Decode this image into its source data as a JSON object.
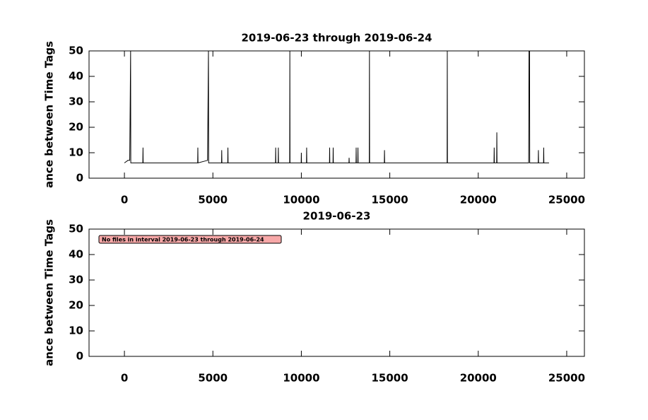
{
  "chart_data": [
    {
      "type": "line",
      "title": "2019-06-23 through 2019-06-24",
      "y_label": "ance between Time Tags",
      "color": "#000000",
      "x": [
        0,
        100,
        200,
        300,
        350,
        360,
        1040,
        1050,
        1060,
        4140,
        4150,
        4160,
        4700,
        4750,
        4760,
        5490,
        5500,
        5510,
        5840,
        5850,
        5860,
        8540,
        8550,
        8560,
        8690,
        8700,
        8710,
        9340,
        9350,
        9360,
        9990,
        10000,
        10010,
        10290,
        10300,
        10310,
        11590,
        11600,
        11610,
        11790,
        11800,
        11810,
        12690,
        12700,
        12710,
        13090,
        13100,
        13110,
        13190,
        13200,
        13210,
        13840,
        13850,
        13860,
        14690,
        14700,
        14710,
        18240,
        18250,
        18260,
        20890,
        20900,
        20910,
        21040,
        21050,
        21060,
        22850,
        22870,
        22900,
        22910,
        23390,
        23400,
        23410,
        23690,
        23700,
        23710,
        24000
      ],
      "values": [
        6,
        6.5,
        7,
        7,
        50,
        6,
        6,
        12,
        6,
        6,
        12,
        6,
        7,
        50,
        6,
        6,
        11,
        6,
        6,
        12,
        6,
        6,
        12,
        6,
        6,
        12,
        6,
        6,
        50,
        6,
        6,
        10,
        6,
        6,
        12,
        6,
        6,
        12,
        6,
        6,
        12,
        6,
        6,
        8,
        6,
        6,
        12,
        6,
        6,
        12,
        6,
        6,
        50,
        6,
        6,
        11,
        6,
        6,
        50,
        6,
        6,
        12,
        6,
        6,
        18,
        6,
        6,
        50,
        50,
        6,
        6,
        11,
        6,
        6,
        12,
        6,
        6
      ],
      "xlim": [
        -2000,
        26000
      ],
      "xticks": [
        0,
        5000,
        10000,
        15000,
        20000,
        25000
      ],
      "ylim": [
        0,
        50
      ],
      "yticks": [
        0,
        10,
        20,
        30,
        40,
        50
      ]
    },
    {
      "type": "line",
      "title": "2019-06-23",
      "y_label": "ance between Time Tags",
      "annotation": "No files in interval 2019-06-23 through 2019-06-24",
      "xlim": [
        -2000,
        26000
      ],
      "xticks": [
        0,
        5000,
        10000,
        15000,
        20000,
        25000
      ],
      "ylim": [
        0,
        50
      ],
      "yticks": [
        0,
        10,
        20,
        30,
        40,
        50
      ]
    }
  ]
}
